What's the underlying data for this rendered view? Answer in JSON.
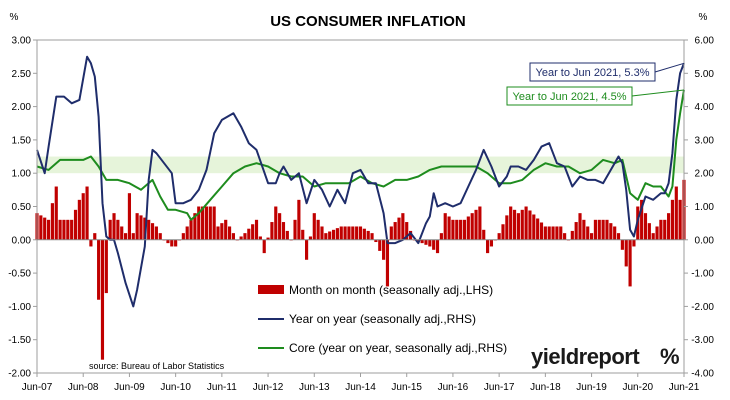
{
  "chart_data": {
    "type": "bar+line",
    "title": "US CONSUMER INFLATION",
    "left_unit": "%",
    "right_unit": "%",
    "left_axis": {
      "ylim": [
        -2.0,
        3.0
      ],
      "ticks": [
        "3.00",
        "2.50",
        "2.00",
        "1.50",
        "1.00",
        "0.50",
        "0.00",
        "-0.50",
        "-1.00",
        "-1.50",
        "-2.00"
      ]
    },
    "right_axis": {
      "ylim": [
        -4.0,
        6.0
      ],
      "ticks": [
        "6.00",
        "5.00",
        "4.00",
        "3.00",
        "2.00",
        "1.00",
        "0.00",
        "-1.00",
        "-2.00",
        "-3.00",
        "-4.00"
      ]
    },
    "x_axis": {
      "start_month": "Jun-07",
      "end_month": "Jun-21",
      "tick_labels": [
        "Jun-07",
        "Jun-08",
        "Jun-09",
        "Jun-10",
        "Jun-11",
        "Jun-12",
        "Jun-13",
        "Jun-14",
        "Jun-15",
        "Jun-16",
        "Jun-17",
        "Jun-18",
        "Jun-19",
        "Jun-20",
        "Jun-21"
      ]
    },
    "band": {
      "low": 1.0,
      "high": 1.25,
      "axis": "left"
    },
    "series": [
      {
        "name": "Month on month (seasonally adj.,LHS)",
        "kind": "bar",
        "axis": "left",
        "color": "#c00000",
        "anchors": [
          [
            "Jun-07",
            0.4
          ],
          [
            "Sep-07",
            0.3
          ],
          [
            "Nov-07",
            0.8
          ],
          [
            "Dec-07",
            0.3
          ],
          [
            "Mar-08",
            0.3
          ],
          [
            "May-08",
            0.6
          ],
          [
            "Jun-08",
            0.7
          ],
          [
            "Jul-08",
            0.8
          ],
          [
            "Aug-08",
            -0.1
          ],
          [
            "Sep-08",
            0.1
          ],
          [
            "Oct-08",
            -0.9
          ],
          [
            "Nov-08",
            -1.8
          ],
          [
            "Dec-08",
            -0.8
          ],
          [
            "Jan-09",
            0.3
          ],
          [
            "Feb-09",
            0.4
          ],
          [
            "May-09",
            0.1
          ],
          [
            "Jun-09",
            0.7
          ],
          [
            "Jul-09",
            0.1
          ],
          [
            "Aug-09",
            0.4
          ],
          [
            "Nov-09",
            0.3
          ],
          [
            "Jan-10",
            0.2
          ],
          [
            "Mar-10",
            0.0
          ],
          [
            "May-10",
            -0.1
          ],
          [
            "Jun-10",
            -0.1
          ],
          [
            "Sep-10",
            0.2
          ],
          [
            "Dec-10",
            0.5
          ],
          [
            "Mar-11",
            0.5
          ],
          [
            "Apr-11",
            0.5
          ],
          [
            "May-11",
            0.2
          ],
          [
            "Jul-11",
            0.3
          ],
          [
            "Oct-11",
            0.0
          ],
          [
            "Dec-11",
            0.1
          ],
          [
            "Mar-12",
            0.3
          ],
          [
            "May-12",
            -0.2
          ],
          [
            "Aug-12",
            0.5
          ],
          [
            "Sep-12",
            0.4
          ],
          [
            "Dec-12",
            0.0
          ],
          [
            "Feb-13",
            0.6
          ],
          [
            "Apr-13",
            -0.3
          ],
          [
            "Jun-13",
            0.4
          ],
          [
            "Sep-13",
            0.1
          ],
          [
            "Jan-14",
            0.2
          ],
          [
            "Jun-14",
            0.2
          ],
          [
            "Sep-14",
            0.1
          ],
          [
            "Dec-14",
            -0.3
          ],
          [
            "Jan-15",
            -0.7
          ],
          [
            "Feb-15",
            0.2
          ],
          [
            "May-15",
            0.4
          ],
          [
            "Aug-15",
            0.0
          ],
          [
            "Dec-15",
            -0.1
          ],
          [
            "Feb-16",
            -0.2
          ],
          [
            "Apr-16",
            0.4
          ],
          [
            "Jun-16",
            0.3
          ],
          [
            "Sep-16",
            0.3
          ],
          [
            "Jan-17",
            0.5
          ],
          [
            "Mar-17",
            -0.2
          ],
          [
            "Jun-17",
            0.1
          ],
          [
            "Sep-17",
            0.5
          ],
          [
            "Nov-17",
            0.4
          ],
          [
            "Jan-18",
            0.5
          ],
          [
            "Jun-18",
            0.2
          ],
          [
            "Oct-18",
            0.2
          ],
          [
            "Dec-18",
            0.0
          ],
          [
            "Mar-19",
            0.4
          ],
          [
            "Apr-19",
            0.3
          ],
          [
            "Jun-19",
            0.1
          ],
          [
            "Jul-19",
            0.3
          ],
          [
            "Oct-19",
            0.3
          ],
          [
            "Dec-19",
            0.2
          ],
          [
            "Jan-20",
            0.1
          ],
          [
            "Mar-20",
            -0.4
          ],
          [
            "Apr-20",
            -0.7
          ],
          [
            "May-20",
            -0.1
          ],
          [
            "Jun-20",
            0.5
          ],
          [
            "Jul-20",
            0.6
          ],
          [
            "Aug-20",
            0.4
          ],
          [
            "Oct-20",
            0.1
          ],
          [
            "Dec-20",
            0.3
          ],
          [
            "Jan-21",
            0.3
          ],
          [
            "Feb-21",
            0.4
          ],
          [
            "Mar-21",
            0.6
          ],
          [
            "Apr-21",
            0.8
          ],
          [
            "May-21",
            0.6
          ],
          [
            "Jun-21",
            0.9
          ]
        ]
      },
      {
        "name": "Year on year (seasonally adj.,RHS)",
        "kind": "line",
        "axis": "right",
        "color": "#1f2d6b",
        "points": [
          [
            "Jun-07",
            2.7
          ],
          [
            "Aug-07",
            2.0
          ],
          [
            "Sep-07",
            2.8
          ],
          [
            "Nov-07",
            4.3
          ],
          [
            "Jan-08",
            4.3
          ],
          [
            "Mar-08",
            4.1
          ],
          [
            "May-08",
            4.2
          ],
          [
            "Jul-08",
            5.5
          ],
          [
            "Aug-08",
            5.3
          ],
          [
            "Sep-08",
            4.9
          ],
          [
            "Oct-08",
            3.7
          ],
          [
            "Nov-08",
            1.1
          ],
          [
            "Dec-08",
            0.1
          ],
          [
            "Jan-09",
            0.0
          ],
          [
            "Feb-09",
            0.0
          ],
          [
            "Mar-09",
            -0.4
          ],
          [
            "May-09",
            -1.3
          ],
          [
            "Jul-09",
            -2.0
          ],
          [
            "Aug-09",
            -1.5
          ],
          [
            "Oct-09",
            -0.2
          ],
          [
            "Nov-09",
            1.8
          ],
          [
            "Dec-09",
            2.7
          ],
          [
            "Jan-10",
            2.6
          ],
          [
            "Mar-10",
            2.3
          ],
          [
            "May-10",
            2.0
          ],
          [
            "Jun-10",
            1.1
          ],
          [
            "Aug-10",
            1.1
          ],
          [
            "Oct-10",
            1.2
          ],
          [
            "Dec-10",
            1.5
          ],
          [
            "Feb-11",
            2.1
          ],
          [
            "Apr-11",
            3.2
          ],
          [
            "Jun-11",
            3.6
          ],
          [
            "Sep-11",
            3.8
          ],
          [
            "Nov-11",
            3.4
          ],
          [
            "Jan-12",
            2.9
          ],
          [
            "Mar-12",
            2.7
          ],
          [
            "Jun-12",
            1.7
          ],
          [
            "Aug-12",
            1.7
          ],
          [
            "Sep-12",
            2.0
          ],
          [
            "Oct-12",
            2.2
          ],
          [
            "Dec-12",
            1.8
          ],
          [
            "Feb-13",
            2.0
          ],
          [
            "Apr-13",
            1.1
          ],
          [
            "Jun-13",
            1.8
          ],
          [
            "Aug-13",
            1.5
          ],
          [
            "Oct-13",
            1.0
          ],
          [
            "Dec-13",
            1.5
          ],
          [
            "Feb-14",
            1.1
          ],
          [
            "Apr-14",
            2.0
          ],
          [
            "Jun-14",
            2.1
          ],
          [
            "Aug-14",
            1.7
          ],
          [
            "Oct-14",
            1.7
          ],
          [
            "Dec-14",
            0.8
          ],
          [
            "Jan-15",
            -0.1
          ],
          [
            "Mar-15",
            -0.1
          ],
          [
            "May-15",
            0.0
          ],
          [
            "Jul-15",
            0.2
          ],
          [
            "Sep-15",
            -0.1
          ],
          [
            "Nov-15",
            0.5
          ],
          [
            "Dec-15",
            0.7
          ],
          [
            "Jan-16",
            1.4
          ],
          [
            "Feb-16",
            1.0
          ],
          [
            "Apr-16",
            1.1
          ],
          [
            "Jun-16",
            1.0
          ],
          [
            "Aug-16",
            1.1
          ],
          [
            "Oct-16",
            1.6
          ],
          [
            "Dec-16",
            2.1
          ],
          [
            "Feb-17",
            2.7
          ],
          [
            "Apr-17",
            2.2
          ],
          [
            "Jun-17",
            1.6
          ],
          [
            "Aug-17",
            1.9
          ],
          [
            "Sep-17",
            2.2
          ],
          [
            "Nov-17",
            2.2
          ],
          [
            "Jan-18",
            2.1
          ],
          [
            "Mar-18",
            2.4
          ],
          [
            "May-18",
            2.8
          ],
          [
            "Jul-18",
            2.9
          ],
          [
            "Sep-18",
            2.3
          ],
          [
            "Nov-18",
            2.2
          ],
          [
            "Jan-19",
            1.6
          ],
          [
            "Mar-19",
            1.9
          ],
          [
            "May-19",
            1.8
          ],
          [
            "Jul-19",
            1.8
          ],
          [
            "Sep-19",
            1.7
          ],
          [
            "Nov-19",
            2.1
          ],
          [
            "Jan-20",
            2.5
          ],
          [
            "Feb-20",
            2.3
          ],
          [
            "Mar-20",
            1.5
          ],
          [
            "Apr-20",
            0.3
          ],
          [
            "May-20",
            0.1
          ],
          [
            "Jun-20",
            0.6
          ],
          [
            "Aug-20",
            1.3
          ],
          [
            "Oct-20",
            1.2
          ],
          [
            "Dec-20",
            1.4
          ],
          [
            "Jan-21",
            1.4
          ],
          [
            "Feb-21",
            1.7
          ],
          [
            "Mar-21",
            2.6
          ],
          [
            "Apr-21",
            4.2
          ],
          [
            "May-21",
            5.0
          ],
          [
            "Jun-21",
            5.3
          ]
        ]
      },
      {
        "name": "Core (year on year, seasonally adj.,RHS)",
        "kind": "line",
        "axis": "right",
        "color": "#1e8c1e",
        "points": [
          [
            "Jun-07",
            2.2
          ],
          [
            "Sep-07",
            2.1
          ],
          [
            "Dec-07",
            2.4
          ],
          [
            "Mar-08",
            2.4
          ],
          [
            "Jun-08",
            2.4
          ],
          [
            "Aug-08",
            2.5
          ],
          [
            "Oct-08",
            2.2
          ],
          [
            "Dec-08",
            1.8
          ],
          [
            "Mar-09",
            1.8
          ],
          [
            "Jun-09",
            1.7
          ],
          [
            "Sep-09",
            1.5
          ],
          [
            "Dec-09",
            1.8
          ],
          [
            "Feb-10",
            1.3
          ],
          [
            "Apr-10",
            0.9
          ],
          [
            "Jun-10",
            0.9
          ],
          [
            "Sep-10",
            0.8
          ],
          [
            "Oct-10",
            0.6
          ],
          [
            "Dec-10",
            0.8
          ],
          [
            "Mar-11",
            1.2
          ],
          [
            "Jun-11",
            1.6
          ],
          [
            "Sep-11",
            2.0
          ],
          [
            "Dec-11",
            2.2
          ],
          [
            "Mar-12",
            2.3
          ],
          [
            "Jun-12",
            2.2
          ],
          [
            "Sep-12",
            2.0
          ],
          [
            "Dec-12",
            1.9
          ],
          [
            "Mar-13",
            1.9
          ],
          [
            "Jun-13",
            1.6
          ],
          [
            "Sep-13",
            1.7
          ],
          [
            "Dec-13",
            1.7
          ],
          [
            "Mar-14",
            1.7
          ],
          [
            "Jun-14",
            1.9
          ],
          [
            "Sep-14",
            1.7
          ],
          [
            "Dec-14",
            1.6
          ],
          [
            "Mar-15",
            1.8
          ],
          [
            "Jun-15",
            1.8
          ],
          [
            "Sep-15",
            1.9
          ],
          [
            "Dec-15",
            2.1
          ],
          [
            "Mar-16",
            2.2
          ],
          [
            "Jun-16",
            2.2
          ],
          [
            "Sep-16",
            2.2
          ],
          [
            "Dec-16",
            2.2
          ],
          [
            "Mar-17",
            2.0
          ],
          [
            "Jun-17",
            1.7
          ],
          [
            "Sep-17",
            1.7
          ],
          [
            "Dec-17",
            1.8
          ],
          [
            "Mar-18",
            2.1
          ],
          [
            "Jun-18",
            2.3
          ],
          [
            "Sep-18",
            2.2
          ],
          [
            "Dec-18",
            2.2
          ],
          [
            "Mar-19",
            2.0
          ],
          [
            "Jun-19",
            2.1
          ],
          [
            "Sep-19",
            2.4
          ],
          [
            "Dec-19",
            2.3
          ],
          [
            "Feb-20",
            2.4
          ],
          [
            "Apr-20",
            1.4
          ],
          [
            "Jun-20",
            1.2
          ],
          [
            "Aug-20",
            1.7
          ],
          [
            "Oct-20",
            1.6
          ],
          [
            "Dec-20",
            1.6
          ],
          [
            "Feb-21",
            1.3
          ],
          [
            "Mar-21",
            1.6
          ],
          [
            "Apr-21",
            3.0
          ],
          [
            "May-21",
            3.8
          ],
          [
            "Jun-21",
            4.5
          ]
        ]
      }
    ],
    "annotations": [
      {
        "text": "Year to Jun 2021, 5.3%",
        "series": "Year on year (seasonally adj.,RHS)",
        "border": "#1f2d6b",
        "color": "#1f2d6b"
      },
      {
        "text": "Year to Jun 2021, 4.5%",
        "series": "Core (year on year, seasonally adj.,RHS)",
        "border": "#1e8c1e",
        "color": "#1e8c1e"
      }
    ],
    "legend_position": "lower-center",
    "grid": false,
    "source": "source: Bureau of Labor Statistics"
  },
  "brand": {
    "name": "yieldreport",
    "symbol": "%",
    "symbol_color": "#c00000"
  }
}
